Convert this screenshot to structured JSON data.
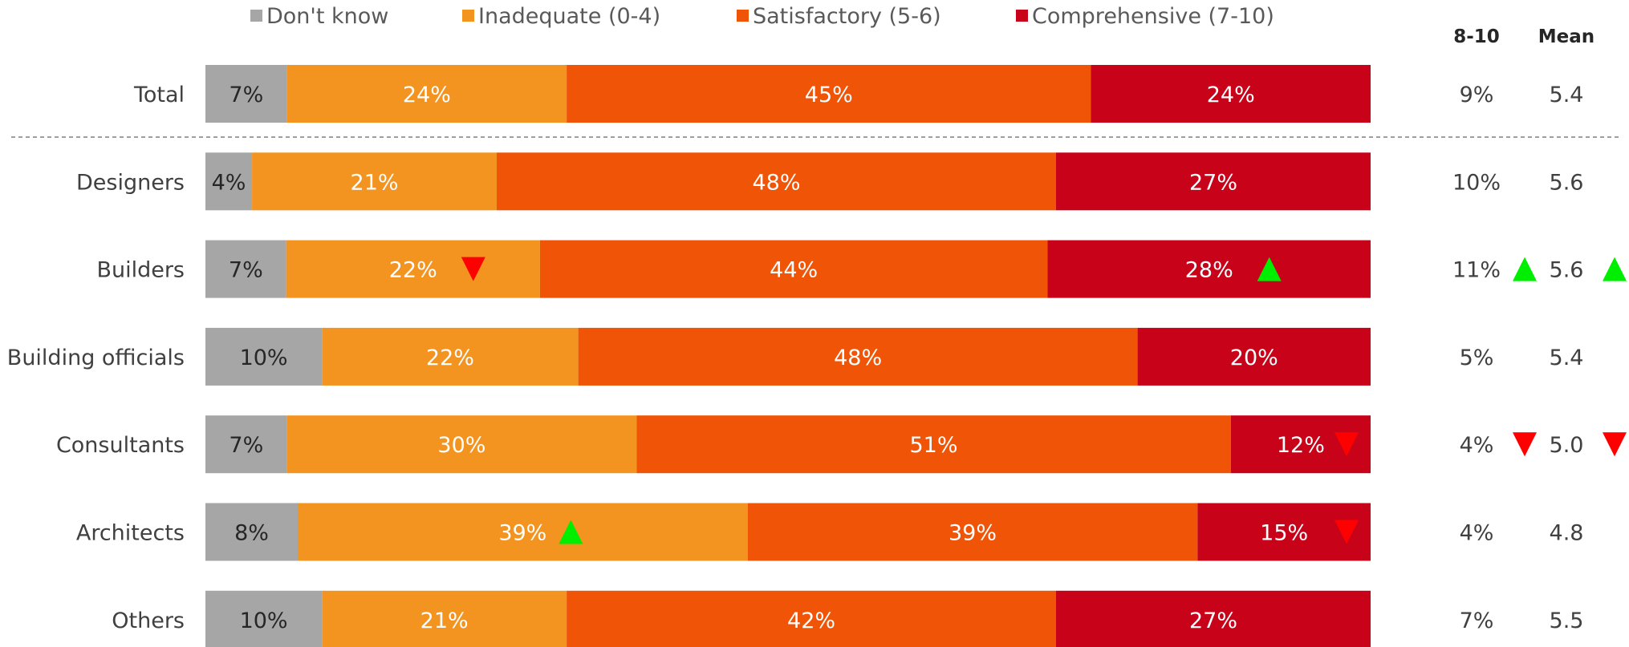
{
  "chart_data": {
    "type": "bar",
    "orientation": "horizontal",
    "stacked": true,
    "percent_scale": true,
    "legend_position": "top",
    "categories": [
      "Total",
      "Designers",
      "Builders",
      "Building officials",
      "Consultants",
      "Architects",
      "Others"
    ],
    "series": [
      {
        "name": "Don't know",
        "color": "#a6a6a6",
        "values": [
          7,
          4,
          7,
          10,
          7,
          8,
          10
        ]
      },
      {
        "name": "Inadequate (0-4)",
        "color": "#f39320",
        "values": [
          24,
          21,
          22,
          22,
          30,
          39,
          21
        ]
      },
      {
        "name": "Satisfactory (5-6)",
        "color": "#ef5407",
        "values": [
          45,
          48,
          44,
          48,
          51,
          39,
          42
        ]
      },
      {
        "name": "Comprehensive (7-10)",
        "color": "#c70219",
        "values": [
          24,
          27,
          28,
          20,
          12,
          15,
          27
        ]
      }
    ],
    "side_columns": [
      {
        "header": "8-10",
        "values": [
          "9%",
          "10%",
          "11%",
          "5%",
          "4%",
          "4%",
          "7%"
        ]
      },
      {
        "header": "Mean",
        "values": [
          "5.4",
          "5.6",
          "5.6",
          "5.4",
          "5.0",
          "4.8",
          "5.5"
        ]
      }
    ],
    "significance_markers": [
      {
        "category": "Builders",
        "series": "Inadequate (0-4)",
        "direction": "down"
      },
      {
        "category": "Builders",
        "series": "Comprehensive (7-10)",
        "direction": "up"
      },
      {
        "category": "Builders",
        "column": "8-10",
        "direction": "up"
      },
      {
        "category": "Builders",
        "column": "Mean",
        "direction": "up"
      },
      {
        "category": "Consultants",
        "series": "Comprehensive (7-10)",
        "direction": "down"
      },
      {
        "category": "Consultants",
        "column": "8-10",
        "direction": "down"
      },
      {
        "category": "Consultants",
        "column": "Mean",
        "direction": "down"
      },
      {
        "category": "Architects",
        "series": "Inadequate (0-4)",
        "direction": "up"
      },
      {
        "category": "Architects",
        "series": "Comprehensive (7-10)",
        "direction": "down"
      }
    ],
    "marker_colors": {
      "up": "#00ee00",
      "down": "#ff0000"
    }
  }
}
